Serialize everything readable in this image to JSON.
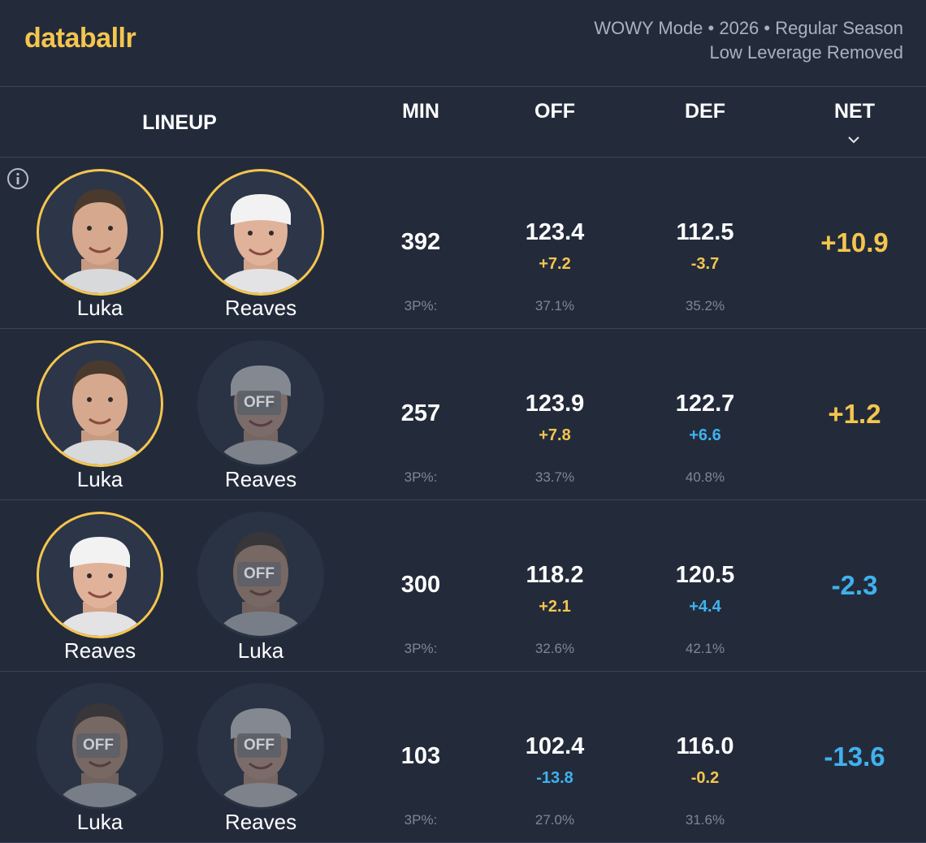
{
  "brand": {
    "logo": "databallr",
    "accent": "#f5c54d",
    "negative": "#3fb2ee"
  },
  "mode": {
    "line1": "WOWY Mode • 2026 • Regular Season",
    "line2": "Low Leverage Removed"
  },
  "columns": {
    "lineup": "LINEUP",
    "min": "MIN",
    "off": "OFF",
    "def": "DEF",
    "net": "NET"
  },
  "rows": [
    {
      "p1": {
        "name": "Luka",
        "on": true,
        "off_label": ""
      },
      "p2": {
        "name": "Reaves",
        "on": true,
        "off_label": ""
      },
      "min": "392",
      "off": "123.4",
      "off_delta": "+7.2",
      "off_3p": "37.1%",
      "def": "112.5",
      "def_delta": "-3.7",
      "def_3p": "35.2%",
      "tp_label": "3P%:",
      "net": "+10.9"
    },
    {
      "p1": {
        "name": "Luka",
        "on": true,
        "off_label": ""
      },
      "p2": {
        "name": "Reaves",
        "on": false,
        "off_label": "OFF"
      },
      "min": "257",
      "off": "123.9",
      "off_delta": "+7.8",
      "off_3p": "33.7%",
      "def": "122.7",
      "def_delta": "+6.6",
      "def_3p": "40.8%",
      "tp_label": "3P%:",
      "net": "+1.2"
    },
    {
      "p1": {
        "name": "Reaves",
        "on": true,
        "off_label": ""
      },
      "p2": {
        "name": "Luka",
        "on": false,
        "off_label": "OFF"
      },
      "min": "300",
      "off": "118.2",
      "off_delta": "+2.1",
      "off_3p": "32.6%",
      "def": "120.5",
      "def_delta": "+4.4",
      "def_3p": "42.1%",
      "tp_label": "3P%:",
      "net": "-2.3"
    },
    {
      "p1": {
        "name": "Luka",
        "on": false,
        "off_label": "OFF"
      },
      "p2": {
        "name": "Reaves",
        "on": false,
        "off_label": "OFF"
      },
      "min": "103",
      "off": "102.4",
      "off_delta": "-13.8",
      "off_3p": "27.0%",
      "def": "116.0",
      "def_delta": "-0.2",
      "def_3p": "31.6%",
      "tp_label": "3P%:",
      "net": "-13.6"
    }
  ]
}
